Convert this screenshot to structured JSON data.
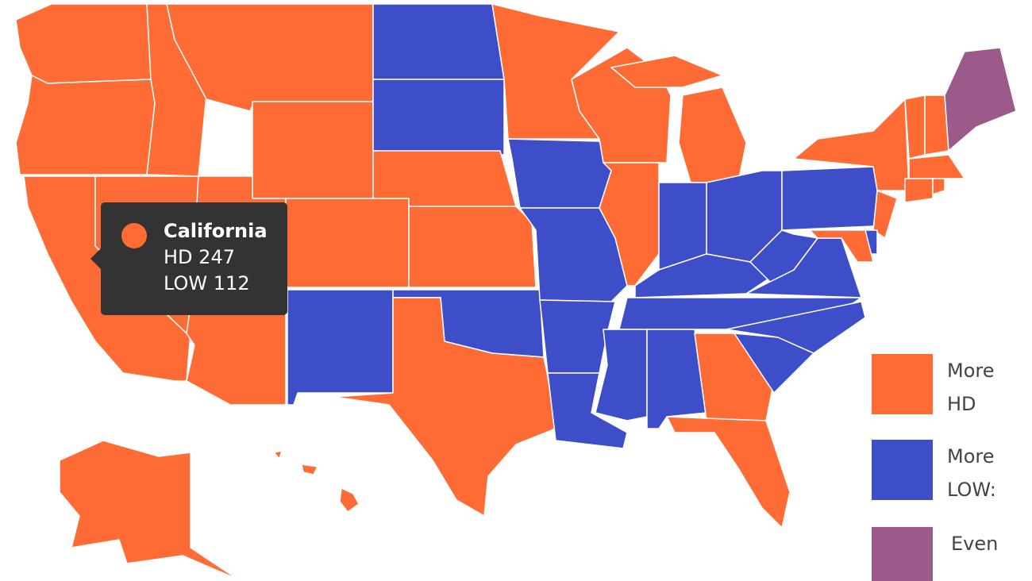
{
  "tooltip": {
    "title": "California",
    "rows": [
      {
        "label": "HD",
        "value": 247
      },
      {
        "label": "LOW",
        "value": 112
      }
    ]
  },
  "legend": [
    {
      "label": "More HD",
      "color": "#ff6b35"
    },
    {
      "label": "More LOW:",
      "color": "#3d4ec8"
    },
    {
      "label": "Even",
      "color": "#9c5a8a"
    }
  ]
}
